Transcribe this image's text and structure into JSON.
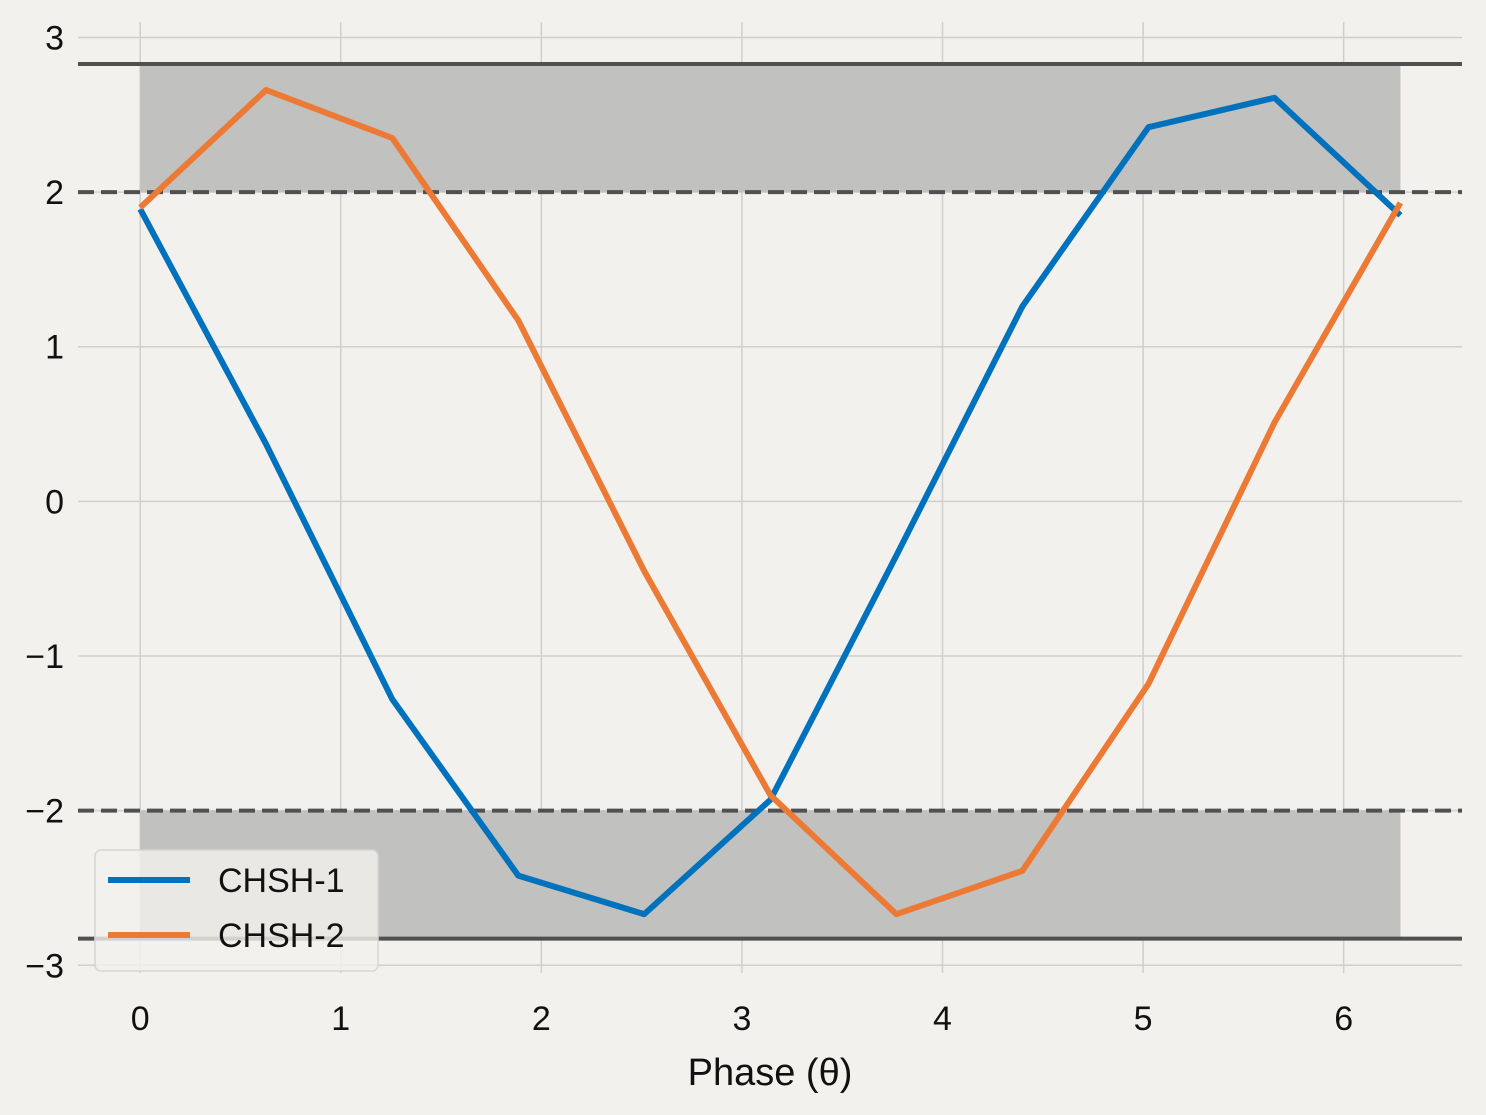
{
  "chart_data": {
    "type": "line",
    "title": "",
    "xlabel": "Phase (θ)",
    "ylabel": "",
    "xlim": [
      -0.31,
      6.59
    ],
    "ylim": [
      -3.05,
      3.1
    ],
    "xticks": [
      0,
      1,
      2,
      3,
      4,
      5,
      6
    ],
    "yticks": [
      3,
      2,
      1,
      0,
      -1,
      -2,
      -3
    ],
    "xtick_labels": [
      "0",
      "1",
      "2",
      "3",
      "4",
      "5",
      "6"
    ],
    "ytick_labels": [
      "3",
      "2",
      "1",
      "0",
      "−1",
      "−2",
      "−3"
    ],
    "grid": true,
    "legend_position": "lower-left",
    "colors": {
      "background": "#f2f1ee",
      "grid": "#cfcfcf",
      "band": "#c1c1bf",
      "reference_line": "#505050",
      "CHSH-1": "#0072bd",
      "CHSH-2": "#ec7a35"
    },
    "x": [
      0,
      0.628,
      1.257,
      1.885,
      2.513,
      3.142,
      3.77,
      4.398,
      5.027,
      5.655,
      6.283
    ],
    "series": [
      {
        "name": "CHSH-1",
        "values": [
          1.89,
          0.37,
          -1.28,
          -2.42,
          -2.67,
          -1.93,
          -0.35,
          1.26,
          2.42,
          2.61,
          1.85
        ]
      },
      {
        "name": "CHSH-2",
        "values": [
          1.9,
          2.66,
          2.35,
          1.17,
          -0.45,
          -1.9,
          -2.67,
          -2.39,
          -1.18,
          0.51,
          1.93
        ]
      }
    ],
    "reference_lines": [
      {
        "y": 2.828,
        "style": "solid"
      },
      {
        "y": -2.828,
        "style": "solid"
      },
      {
        "y": 2,
        "style": "dashed"
      },
      {
        "y": -2,
        "style": "dashed"
      }
    ],
    "shaded_bands": [
      {
        "x": [
          0,
          6.283
        ],
        "y": [
          2,
          2.828
        ]
      },
      {
        "x": [
          0,
          6.283
        ],
        "y": [
          -2.828,
          -2
        ]
      }
    ]
  }
}
